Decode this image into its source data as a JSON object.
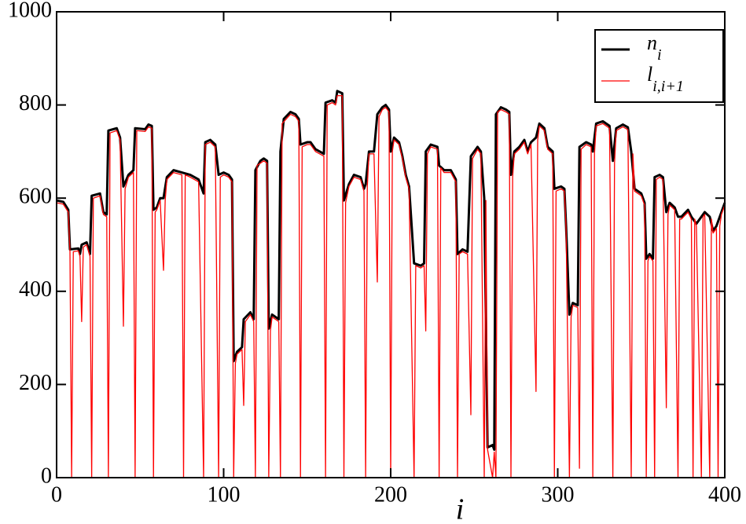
{
  "chart_data": {
    "type": "line",
    "xlabel": "i",
    "xlim": [
      0,
      400
    ],
    "ylim": [
      0,
      1000
    ],
    "xticks": [
      0,
      100,
      200,
      300,
      400
    ],
    "yticks": [
      0,
      200,
      400,
      600,
      800,
      1000
    ],
    "grid": false,
    "legend": "upper right",
    "series": [
      {
        "name": "n",
        "name_subscript": "i",
        "color": "#000000",
        "x": [
          0,
          4,
          7,
          8,
          13,
          14,
          15,
          18,
          20,
          21,
          26,
          28,
          30,
          31,
          36,
          38,
          40,
          43,
          46,
          47,
          53,
          55,
          57,
          58,
          60,
          62,
          64,
          66,
          70,
          75,
          80,
          85,
          88,
          89,
          92,
          95,
          97,
          100,
          103,
          105,
          106,
          108,
          111,
          112,
          116,
          118,
          119,
          122,
          124,
          126,
          127,
          129,
          133,
          134,
          136,
          140,
          143,
          145,
          146,
          150,
          152,
          155,
          160,
          161,
          165,
          167,
          168,
          171,
          172,
          175,
          178,
          182,
          184,
          185,
          187,
          190,
          192,
          195,
          197,
          199,
          200,
          202,
          205,
          207,
          209,
          211,
          214,
          218,
          220,
          221,
          224,
          228,
          229,
          232,
          236,
          239,
          240,
          243,
          246,
          248,
          252,
          254,
          256,
          258,
          261,
          262,
          263,
          266,
          269,
          271,
          272,
          274,
          277,
          280,
          282,
          284,
          287,
          289,
          292,
          294,
          297,
          298,
          302,
          304,
          305,
          307,
          309,
          312,
          313,
          317,
          320,
          321,
          323,
          327,
          331,
          333,
          335,
          339,
          342,
          344,
          346,
          350,
          352,
          353,
          355,
          357,
          358,
          361,
          363,
          365,
          367,
          370,
          372,
          374,
          378,
          380,
          383,
          388,
          391,
          393,
          395,
          398,
          400
        ],
        "values": [
          595,
          592,
          575,
          490,
          492,
          480,
          500,
          505,
          480,
          605,
          610,
          570,
          565,
          745,
          750,
          730,
          625,
          650,
          660,
          750,
          748,
          758,
          755,
          575,
          580,
          600,
          600,
          645,
          660,
          655,
          650,
          640,
          610,
          720,
          725,
          715,
          650,
          655,
          650,
          640,
          250,
          270,
          280,
          340,
          355,
          340,
          660,
          680,
          685,
          680,
          320,
          350,
          340,
          700,
          770,
          785,
          780,
          770,
          715,
          720,
          720,
          705,
          695,
          805,
          810,
          805,
          830,
          825,
          595,
          630,
          650,
          645,
          620,
          630,
          700,
          700,
          780,
          795,
          800,
          790,
          700,
          730,
          720,
          690,
          650,
          625,
          460,
          455,
          460,
          700,
          715,
          710,
          670,
          660,
          660,
          640,
          480,
          490,
          485,
          690,
          710,
          700,
          600,
          65,
          70,
          60,
          780,
          795,
          790,
          785,
          650,
          700,
          710,
          725,
          700,
          720,
          730,
          760,
          750,
          710,
          700,
          620,
          625,
          620,
          540,
          350,
          375,
          370,
          710,
          720,
          715,
          700,
          760,
          765,
          755,
          680,
          750,
          758,
          752,
          700,
          620,
          610,
          590,
          470,
          480,
          470,
          645,
          650,
          645,
          570,
          590,
          580,
          560,
          560,
          575,
          560,
          545,
          570,
          560,
          530,
          540,
          570,
          590
        ]
      },
      {
        "name": "l",
        "name_subscript": "i,i+1",
        "color": "#ff0000",
        "x": [
          0,
          4,
          7,
          8,
          9,
          10,
          13,
          14,
          15,
          16,
          18,
          20,
          21,
          22,
          26,
          28,
          30,
          31,
          32,
          36,
          38,
          40,
          41,
          43,
          46,
          47,
          48,
          53,
          55,
          57,
          58,
          59,
          60,
          62,
          64,
          65,
          66,
          70,
          75,
          76,
          77,
          80,
          85,
          88,
          89,
          92,
          95,
          97,
          98,
          100,
          103,
          105,
          106,
          107,
          108,
          111,
          112,
          113,
          116,
          118,
          119,
          120,
          122,
          124,
          126,
          127,
          128,
          129,
          133,
          134,
          135,
          140,
          143,
          145,
          146,
          147,
          150,
          152,
          155,
          160,
          161,
          162,
          165,
          167,
          168,
          171,
          172,
          173,
          175,
          178,
          182,
          184,
          185,
          186,
          187,
          190,
          192,
          193,
          195,
          197,
          199,
          200,
          201,
          202,
          205,
          207,
          209,
          211,
          214,
          215,
          218,
          220,
          221,
          222,
          224,
          228,
          229,
          230,
          232,
          236,
          239,
          240,
          241,
          243,
          246,
          248,
          249,
          252,
          254,
          256,
          257,
          258,
          261,
          262,
          263,
          264,
          266,
          269,
          271,
          272,
          273,
          274,
          277,
          280,
          282,
          284,
          287,
          288,
          289,
          292,
          294,
          297,
          298,
          299,
          302,
          304,
          305,
          307,
          308,
          309,
          312,
          313,
          314,
          317,
          320,
          321,
          322,
          323,
          327,
          331,
          333,
          334,
          335,
          339,
          342,
          344,
          345,
          346,
          350,
          352,
          353,
          354,
          355,
          357,
          358,
          359,
          361,
          363,
          365,
          366,
          367,
          370,
          372,
          373,
          374,
          378,
          380,
          381,
          382,
          383,
          386,
          387,
          388,
          391,
          392,
          393,
          395,
          396,
          397,
          398,
          400
        ],
        "values": [
          590,
          587,
          570,
          485,
          0,
          485,
          487,
          475,
          335,
          495,
          500,
          475,
          0,
          600,
          605,
          565,
          560,
          0,
          740,
          745,
          725,
          325,
          620,
          645,
          655,
          0,
          745,
          743,
          753,
          750,
          0,
          570,
          575,
          595,
          445,
          595,
          640,
          655,
          650,
          0,
          650,
          645,
          635,
          0,
          715,
          720,
          710,
          0,
          645,
          650,
          645,
          635,
          0,
          245,
          265,
          275,
          155,
          335,
          350,
          335,
          0,
          670,
          675,
          680,
          675,
          0,
          315,
          345,
          335,
          0,
          760,
          780,
          775,
          765,
          0,
          710,
          715,
          715,
          700,
          690,
          0,
          800,
          805,
          800,
          820,
          820,
          0,
          590,
          625,
          645,
          640,
          615,
          0,
          625,
          695,
          695,
          420,
          775,
          790,
          795,
          785,
          0,
          700,
          725,
          715,
          685,
          645,
          620,
          0,
          455,
          450,
          455,
          315,
          695,
          710,
          705,
          0,
          665,
          655,
          655,
          635,
          0,
          480,
          485,
          480,
          135,
          685,
          705,
          695,
          0,
          595,
          60,
          0,
          55,
          0,
          785,
          790,
          785,
          780,
          0,
          645,
          695,
          705,
          720,
          695,
          715,
          185,
          725,
          755,
          745,
          705,
          695,
          0,
          615,
          620,
          615,
          535,
          0,
          345,
          370,
          365,
          20,
          705,
          715,
          710,
          0,
          695,
          755,
          760,
          750,
          0,
          675,
          745,
          753,
          747,
          0,
          695,
          615,
          605,
          585,
          0,
          465,
          475,
          465,
          0,
          640,
          645,
          640,
          150,
          565,
          585,
          575,
          0,
          555,
          555,
          570,
          555,
          0,
          555,
          540,
          0,
          560,
          565,
          0,
          555,
          525,
          535,
          0,
          540,
          565,
          585
        ]
      }
    ]
  }
}
